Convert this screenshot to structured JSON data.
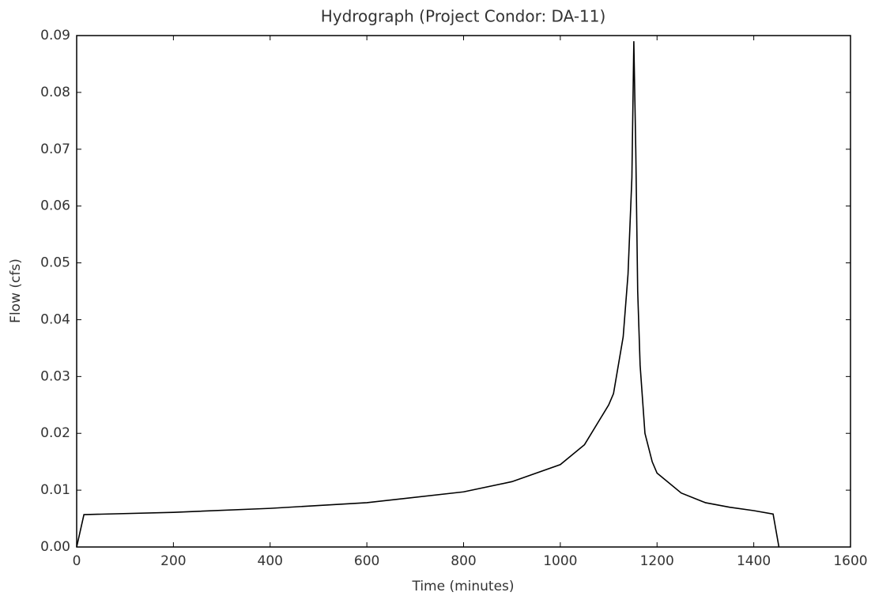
{
  "chart_data": {
    "type": "line",
    "title": "Hydrograph (Project Condor: DA-11)",
    "xlabel": "Time (minutes)",
    "ylabel": "Flow (cfs)",
    "x": [
      0,
      15,
      200,
      400,
      600,
      800,
      900,
      1000,
      1050,
      1100,
      1110,
      1130,
      1140,
      1148,
      1152,
      1156,
      1160,
      1165,
      1175,
      1190,
      1200,
      1250,
      1300,
      1350,
      1400,
      1440,
      1452
    ],
    "series": [
      {
        "name": "Flow",
        "color": "#000000",
        "values": [
          0,
          0.0057,
          0.0061,
          0.0068,
          0.0078,
          0.0097,
          0.0115,
          0.0145,
          0.018,
          0.025,
          0.027,
          0.037,
          0.048,
          0.065,
          0.089,
          0.07,
          0.045,
          0.032,
          0.02,
          0.015,
          0.013,
          0.0095,
          0.0078,
          0.007,
          0.0064,
          0.0058,
          0
        ]
      }
    ],
    "xlim": [
      0,
      1600
    ],
    "xticks": [
      0,
      200,
      400,
      600,
      800,
      1000,
      1200,
      1400,
      1600
    ],
    "ylim": [
      0,
      0.09
    ],
    "yticks": [
      {
        "value": 0,
        "label": "0.00"
      },
      0.01,
      0.02,
      0.03,
      0.04,
      0.05,
      0.06,
      0.07,
      0.08,
      0.09
    ],
    "grid": false
  }
}
